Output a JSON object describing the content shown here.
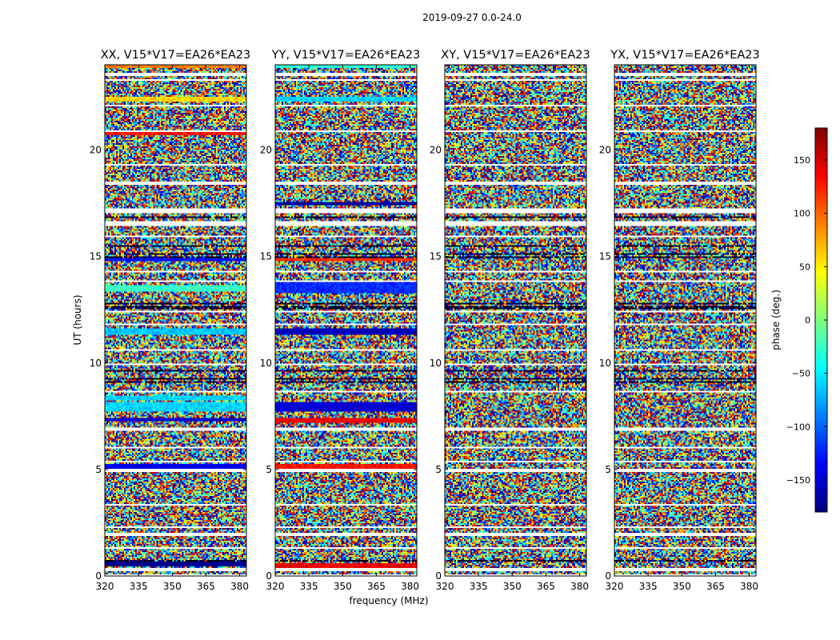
{
  "figure_title": "2019-09-27 0.0-24.0",
  "chart_data": [
    {
      "type": "heatmap",
      "title": "XX, V15*V17=EA26*EA23",
      "xlabel": "",
      "ylabel": "UT (hours)",
      "xlim": [
        320,
        383
      ],
      "ylim": [
        0,
        24
      ],
      "x_ticks": [
        "320",
        "335",
        "350",
        "365",
        "380"
      ],
      "y_ticks": [
        "0",
        "5",
        "10",
        "15",
        "20"
      ],
      "bands": [
        {
          "t0": 0.45,
          "t1": 0.65,
          "value": -180
        },
        {
          "t0": 5.05,
          "t1": 5.25,
          "value": -140
        },
        {
          "t0": 7.25,
          "t1": 7.45,
          "value": -150
        },
        {
          "t0": 7.7,
          "t1": 8.2,
          "value": -60
        },
        {
          "t0": 8.25,
          "t1": 8.45,
          "value": -60
        },
        {
          "t0": 11.35,
          "t1": 11.65,
          "value": -65
        },
        {
          "t0": 13.35,
          "t1": 13.65,
          "value": -25
        },
        {
          "t0": 14.75,
          "t1": 14.9,
          "value": -130
        },
        {
          "t0": 20.7,
          "t1": 20.85,
          "value": 130
        },
        {
          "t0": 22.3,
          "t1": 22.5,
          "value": 60
        },
        {
          "t0": 23.85,
          "t1": 24.0,
          "value": 90
        }
      ]
    },
    {
      "type": "heatmap",
      "title": "YY, V15*V17=EA26*EA23",
      "xlabel": "frequency (MHz)",
      "ylabel": "",
      "xlim": [
        320,
        383
      ],
      "ylim": [
        0,
        24
      ],
      "x_ticks": [
        "320",
        "335",
        "350",
        "365",
        "380"
      ],
      "y_ticks": [
        "0",
        "5",
        "10",
        "15",
        "20"
      ],
      "bands": [
        {
          "t0": 0.4,
          "t1": 0.6,
          "value": 140
        },
        {
          "t0": 5.05,
          "t1": 5.25,
          "value": 130
        },
        {
          "t0": 7.2,
          "t1": 7.45,
          "value": 140
        },
        {
          "t0": 7.7,
          "t1": 8.2,
          "value": -150
        },
        {
          "t0": 11.3,
          "t1": 11.6,
          "value": -160
        },
        {
          "t0": 13.3,
          "t1": 13.8,
          "value": -120
        },
        {
          "t0": 14.75,
          "t1": 14.9,
          "value": 120
        },
        {
          "t0": 17.4,
          "t1": 17.55,
          "value": -170
        },
        {
          "t0": 22.3,
          "t1": 22.5,
          "value": -60
        },
        {
          "t0": 23.85,
          "t1": 24.0,
          "value": -30
        }
      ]
    },
    {
      "type": "heatmap",
      "title": "XY, V15*V17=EA26*EA23",
      "xlabel": "",
      "ylabel": "",
      "xlim": [
        320,
        383
      ],
      "ylim": [
        0,
        24
      ],
      "x_ticks": [
        "320",
        "335",
        "350",
        "365",
        "380"
      ],
      "y_ticks": [
        "0",
        "5",
        "10",
        "15",
        "20"
      ],
      "bands": []
    },
    {
      "type": "heatmap",
      "title": "YX, V15*V17=EA26*EA23",
      "xlabel": "",
      "ylabel": "",
      "xlim": [
        320,
        383
      ],
      "ylim": [
        0,
        24
      ],
      "x_ticks": [
        "320",
        "335",
        "350",
        "365",
        "380"
      ],
      "y_ticks": [
        "0",
        "5",
        "10",
        "15",
        "20"
      ],
      "bands": []
    }
  ],
  "gaps": [
    [
      0.0,
      0.08
    ],
    [
      0.22,
      0.4
    ],
    [
      1.28,
      1.33
    ],
    [
      1.9,
      2.0
    ],
    [
      2.25,
      2.3
    ],
    [
      3.3,
      3.38
    ],
    [
      4.9,
      5.0
    ],
    [
      5.3,
      5.38
    ],
    [
      6.0,
      6.08
    ],
    [
      6.82,
      6.95
    ],
    [
      8.65,
      8.72
    ],
    [
      9.9,
      10.0
    ],
    [
      10.55,
      10.65
    ],
    [
      11.75,
      11.85
    ],
    [
      12.35,
      12.42
    ],
    [
      13.8,
      13.88
    ],
    [
      14.25,
      14.35
    ],
    [
      15.92,
      16.0
    ],
    [
      16.45,
      16.65
    ],
    [
      17.05,
      17.25
    ],
    [
      18.4,
      18.5
    ],
    [
      19.3,
      19.35
    ],
    [
      20.85,
      20.95
    ],
    [
      21.5,
      21.55
    ],
    [
      22.05,
      22.15
    ],
    [
      23.25,
      23.32
    ],
    [
      23.5,
      23.6
    ]
  ],
  "dark_rows": [
    [
      0.7,
      0.75
    ],
    [
      1.4,
      1.44
    ],
    [
      2.15,
      2.2
    ],
    [
      4.85,
      4.9
    ],
    [
      9.05,
      9.12
    ],
    [
      9.2,
      9.28
    ],
    [
      9.6,
      9.65
    ],
    [
      12.55,
      12.65
    ],
    [
      12.75,
      12.82
    ],
    [
      14.95,
      15.02
    ],
    [
      15.1,
      15.18
    ],
    [
      15.45,
      15.52
    ],
    [
      15.65,
      15.7
    ],
    [
      16.8,
      16.85
    ]
  ],
  "colorbar": {
    "label": "phase (deg.)",
    "min": -180,
    "max": 180,
    "ticks": [
      "150",
      "100",
      "50",
      "0",
      "−50",
      "−100",
      "−150"
    ],
    "tick_values": [
      150,
      100,
      50,
      0,
      -50,
      -100,
      -150
    ],
    "colormap": [
      "#00007f",
      "#0000ff",
      "#007fff",
      "#00ffff",
      "#7fff7f",
      "#ffff00",
      "#ff7f00",
      "#ff0000",
      "#7f0000"
    ]
  }
}
